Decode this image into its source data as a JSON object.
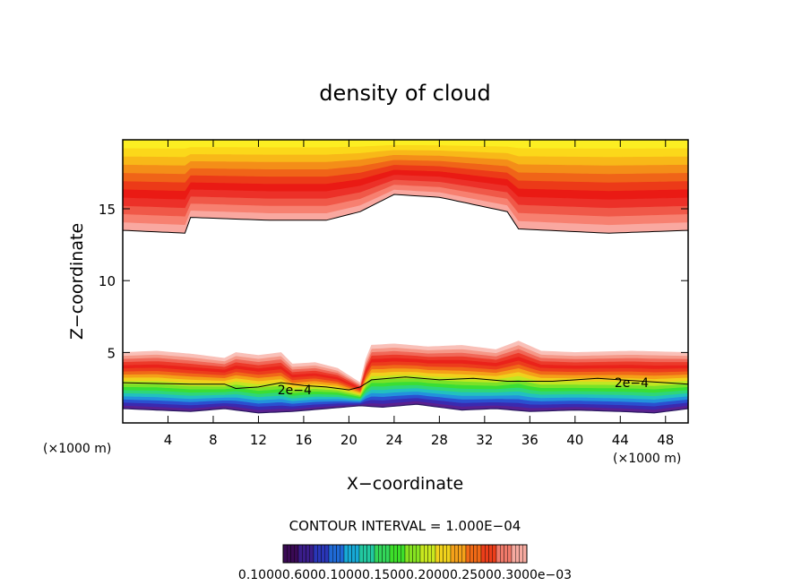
{
  "chart_data": {
    "type": "heatmap",
    "title": "density of cloud",
    "xlabel": "X−coordinate",
    "ylabel": "Z−coordinate",
    "x_unit_left": "(×1000 m)",
    "x_unit_right": "(×1000 m)",
    "xlim": [
      0,
      50
    ],
    "ylim": [
      0.1,
      19.8
    ],
    "x_ticks": [
      {
        "value": 4,
        "label": "4"
      },
      {
        "value": 8,
        "label": "8"
      },
      {
        "value": 12,
        "label": "12"
      },
      {
        "value": 16,
        "label": "16"
      },
      {
        "value": 20,
        "label": "20"
      },
      {
        "value": 24,
        "label": "24"
      },
      {
        "value": 28,
        "label": "28"
      },
      {
        "value": 32,
        "label": "32"
      },
      {
        "value": 36,
        "label": "36"
      },
      {
        "value": 40,
        "label": "40"
      },
      {
        "value": 44,
        "label": "44"
      },
      {
        "value": 48,
        "label": "48"
      }
    ],
    "y_ticks": [
      {
        "value": 5,
        "label": "5"
      },
      {
        "value": 10,
        "label": "10"
      },
      {
        "value": 15,
        "label": "15"
      }
    ],
    "contour_interval_text": "CONTOUR INTERVAL = 1.000E−04",
    "contour_labels": [
      {
        "x": 15.2,
        "z": 2.4,
        "label": "2e−4"
      },
      {
        "x": 45.0,
        "z": 2.9,
        "label": "2e−4"
      }
    ],
    "colorbar": {
      "colors": [
        "#3a0a55",
        "#3a1d8a",
        "#2a36b8",
        "#1f6ad6",
        "#17a9d6",
        "#22c8a0",
        "#33d65a",
        "#3ddf2a",
        "#86e321",
        "#c8e81f",
        "#f0d21c",
        "#f4a11a",
        "#f06a16",
        "#ec3e1a",
        "#f07a6a",
        "#f6aaa0"
      ],
      "labels": "0.10000.6000.10000.15000.20000.25000.3000e−03"
    },
    "upper_layer": {
      "bottom_boundary": [
        [
          0,
          13.5
        ],
        [
          5.6,
          13.3
        ],
        [
          6.0,
          14.4
        ],
        [
          13,
          14.2
        ],
        [
          18,
          14.2
        ],
        [
          21,
          14.8
        ],
        [
          24,
          16.0
        ],
        [
          28,
          15.8
        ],
        [
          34,
          14.8
        ],
        [
          35,
          13.6
        ],
        [
          43,
          13.3
        ],
        [
          50,
          13.5
        ]
      ],
      "colors_bottom_to_top": [
        "#f9a8a0",
        "#f78070",
        "#f05848",
        "#ec3028",
        "#ea1a14",
        "#ec3a18",
        "#f06418",
        "#f48e18",
        "#f8b818",
        "#fbd81a",
        "#fcee22"
      ]
    },
    "lower_layer": {
      "top_boundary": [
        [
          0,
          5.0
        ],
        [
          3,
          5.1
        ],
        [
          6,
          4.9
        ],
        [
          9,
          4.6
        ],
        [
          10,
          5.0
        ],
        [
          12,
          4.8
        ],
        [
          14,
          5.0
        ],
        [
          15,
          4.2
        ],
        [
          17,
          4.3
        ],
        [
          19,
          3.9
        ],
        [
          21,
          2.9
        ],
        [
          21.8,
          5.5
        ],
        [
          24,
          5.6
        ],
        [
          27,
          5.4
        ],
        [
          30,
          5.5
        ],
        [
          33,
          5.2
        ],
        [
          35,
          5.8
        ],
        [
          37,
          5.1
        ],
        [
          40,
          5.0
        ],
        [
          45,
          5.1
        ],
        [
          50,
          5.0
        ]
      ],
      "contour_2e4": [
        [
          0,
          2.9
        ],
        [
          6,
          2.8
        ],
        [
          9,
          2.8
        ],
        [
          10,
          2.5
        ],
        [
          12,
          2.6
        ],
        [
          14,
          2.9
        ],
        [
          16,
          2.7
        ],
        [
          18,
          2.6
        ],
        [
          20,
          2.4
        ],
        [
          21,
          2.6
        ],
        [
          22,
          3.1
        ],
        [
          25,
          3.3
        ],
        [
          28,
          3.1
        ],
        [
          31,
          3.2
        ],
        [
          34,
          3.0
        ],
        [
          38,
          3.0
        ],
        [
          42,
          3.2
        ],
        [
          46,
          3.0
        ],
        [
          50,
          2.8
        ]
      ],
      "bottom_boundary": [
        [
          0,
          1.1
        ],
        [
          3,
          1.0
        ],
        [
          6,
          0.9
        ],
        [
          9,
          1.1
        ],
        [
          12,
          0.8
        ],
        [
          15,
          0.9
        ],
        [
          18,
          1.1
        ],
        [
          21,
          1.3
        ],
        [
          23,
          1.2
        ],
        [
          26,
          1.4
        ],
        [
          30,
          1.0
        ],
        [
          33,
          1.1
        ],
        [
          36,
          0.9
        ],
        [
          40,
          1.0
        ],
        [
          44,
          0.9
        ],
        [
          47,
          0.8
        ],
        [
          50,
          1.1
        ]
      ],
      "colors_bottom_to_top": [
        "#5a2090",
        "#3a2ab0",
        "#2a50d0",
        "#2292dc",
        "#22c0c0",
        "#2ed67a",
        "#3ade34",
        "#7ae228",
        "#c2e622",
        "#f0d01c",
        "#f4a018",
        "#f06818",
        "#ec3c1c",
        "#ea221a",
        "#ec3a2a",
        "#f06858",
        "#f59888",
        "#f9c0b8"
      ]
    }
  }
}
